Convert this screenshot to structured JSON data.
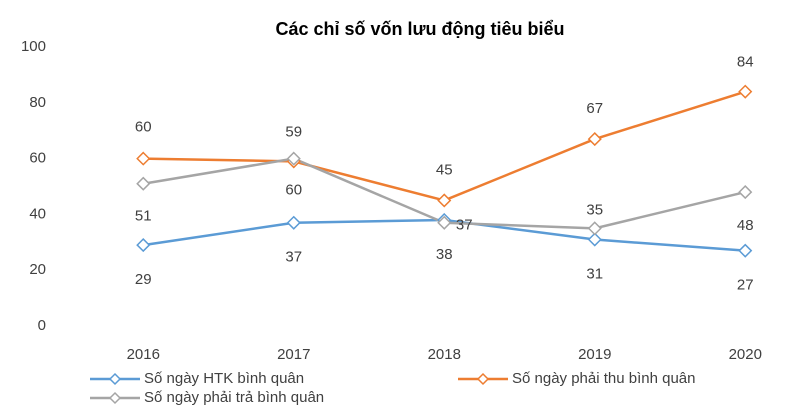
{
  "chart_data": {
    "type": "line",
    "title": "Các chỉ số vốn lưu động tiêu biểu",
    "categories": [
      "2016",
      "2017",
      "2018",
      "2019",
      "2020"
    ],
    "series": [
      {
        "name": "Số ngày HTK bình quân",
        "color": "#5b9bd5",
        "values": [
          29,
          37,
          38,
          31,
          27
        ]
      },
      {
        "name": "Số ngày phải thu bình quân",
        "color": "#ed7d31",
        "values": [
          60,
          59,
          45,
          67,
          84
        ]
      },
      {
        "name": "Số ngày phải trả bình quân",
        "color": "#a5a5a5",
        "values": [
          51,
          60,
          37,
          35,
          48
        ]
      }
    ],
    "ylim": [
      0,
      100
    ],
    "yticks": [
      0,
      20,
      40,
      60,
      80,
      100
    ],
    "grid": false
  }
}
